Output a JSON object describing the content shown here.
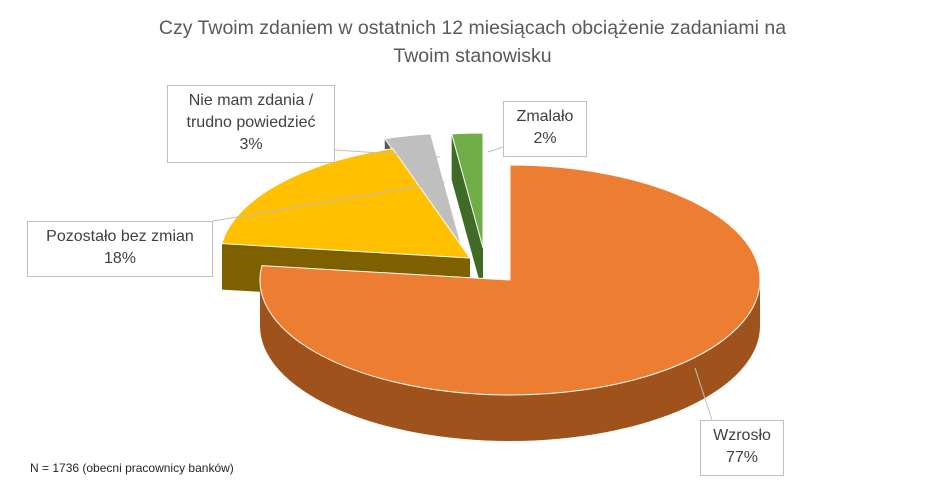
{
  "chart_data": {
    "type": "pie",
    "title_line1": "Czy Twoim zdaniem w ostatnich 12 miesiącach obciążenie zadaniami na",
    "title_line2": "Twoim stanowisku",
    "slices": [
      {
        "name": "Wzrosło",
        "value": 77,
        "label": "77%",
        "color": "#ED7D31",
        "side_color": "#A0521C"
      },
      {
        "name": "Pozostało bez zmian",
        "value": 18,
        "label": "18%",
        "color": "#FFC000",
        "side_color": "#7F6000"
      },
      {
        "name_line1": "Nie mam zdania /",
        "name_line2": "trudno powiedzieć",
        "value": 3,
        "label": "3%",
        "color": "#BFBFBF",
        "side_color": "#595959"
      },
      {
        "name": "Zmalało",
        "value": 2,
        "label": "2%",
        "color": "#70AD47",
        "side_color": "#3F6B26"
      }
    ],
    "exploded": true,
    "three_d": true,
    "legend": "none",
    "footnote": "N = 1736 (obecni pracownicy banków)"
  }
}
